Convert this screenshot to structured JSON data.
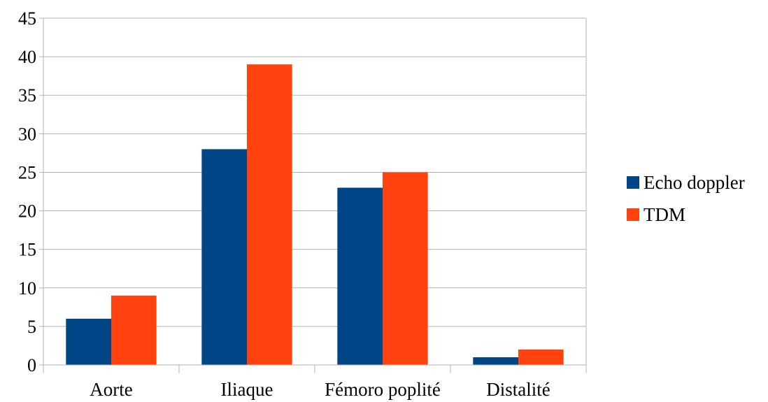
{
  "chart_data": {
    "type": "bar",
    "categories": [
      "Aorte",
      "Iliaque",
      "Fémoro poplité",
      "Distalité"
    ],
    "series": [
      {
        "name": "Echo doppler",
        "values": [
          6,
          28,
          23,
          1
        ],
        "color": "#004586"
      },
      {
        "name": "TDM",
        "values": [
          9,
          39,
          25,
          2
        ],
        "color": "#ff420e"
      }
    ],
    "ylim": [
      0,
      45
    ],
    "yticks": [
      0,
      5,
      10,
      15,
      20,
      25,
      30,
      35,
      40,
      45
    ],
    "grid": true,
    "gridColor": "#b3b3b3",
    "legend": "right"
  }
}
